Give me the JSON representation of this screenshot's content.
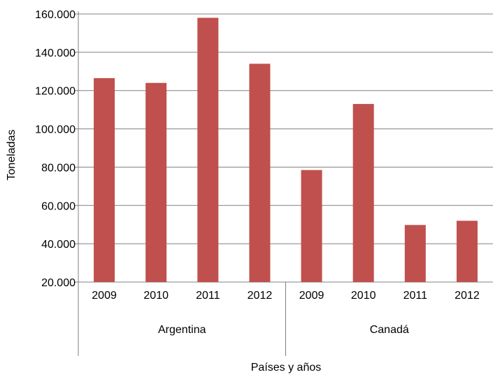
{
  "chart_data": {
    "type": "bar",
    "ylabel": "Toneladas",
    "xlabel": "Países y años",
    "ylim": [
      20000,
      160000
    ],
    "yticks": [
      "20.000",
      "40.000",
      "60.000",
      "80.000",
      "100.000",
      "120.000",
      "140.000",
      "160.000"
    ],
    "ytick_values": [
      20000,
      40000,
      60000,
      80000,
      100000,
      120000,
      140000,
      160000
    ],
    "grid": true,
    "legend": "none",
    "bar_color": "#c0504d",
    "groups": [
      {
        "label": "Argentina",
        "categories": [
          "2009",
          "2010",
          "2011",
          "2012"
        ],
        "values": [
          126500,
          124000,
          158000,
          134000
        ]
      },
      {
        "label": "Canadá",
        "categories": [
          "2009",
          "2010",
          "2011",
          "2012"
        ],
        "values": [
          78500,
          113000,
          49800,
          52000
        ]
      }
    ]
  }
}
